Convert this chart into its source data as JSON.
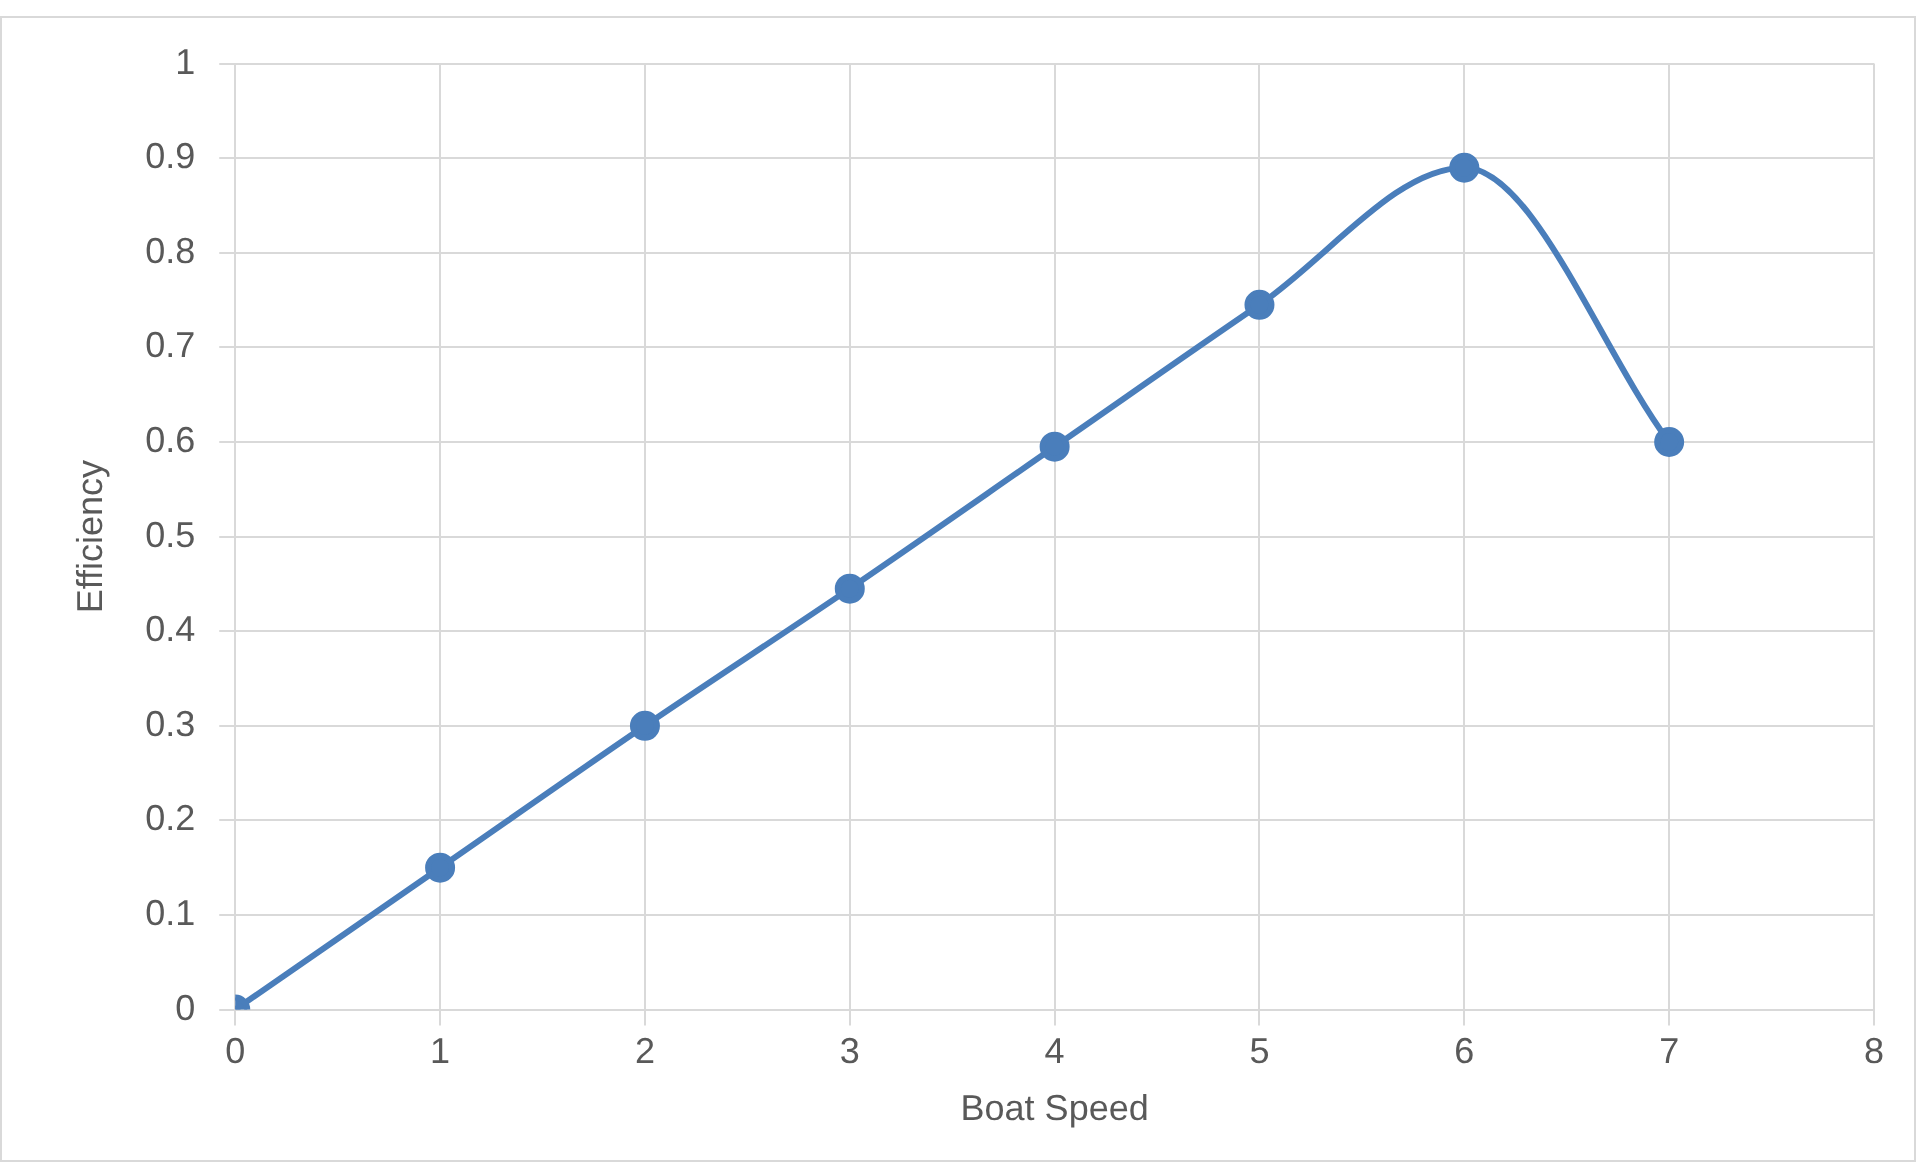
{
  "chart_data": {
    "type": "line",
    "xlabel": "Boat Speed",
    "ylabel": "Efficiency",
    "x": [
      0,
      1,
      2,
      3,
      4,
      5,
      6,
      7
    ],
    "series": [
      {
        "color": "#4a7ebb",
        "values": [
          0,
          0.15,
          0.3,
          0.445,
          0.595,
          0.745,
          0.89,
          0.6
        ]
      }
    ],
    "xlim": [
      0,
      8
    ],
    "xticks": [
      0,
      1,
      2,
      3,
      4,
      5,
      6,
      7,
      8
    ],
    "ylim": [
      0,
      1
    ],
    "yticks": [
      0,
      0.1,
      0.2,
      0.3,
      0.4,
      0.5,
      0.6,
      0.7,
      0.8,
      0.9,
      1
    ],
    "grid": true,
    "legend": false,
    "marker": "circle",
    "line_style": "solid"
  }
}
